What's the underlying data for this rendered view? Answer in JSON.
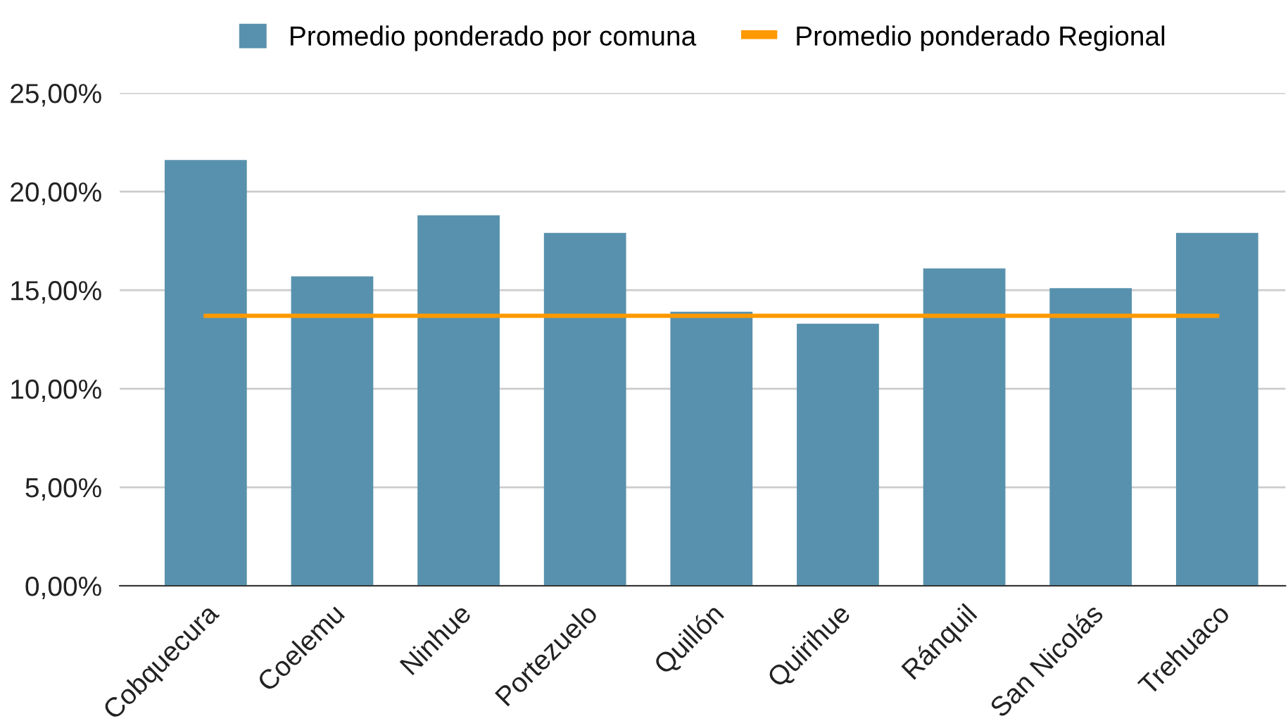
{
  "chart_data": {
    "type": "bar",
    "categories": [
      "Cobquecura",
      "Coelemu",
      "Ninhue",
      "Portezuelo",
      "Quillón",
      "Quirihue",
      "Ránquil",
      "San Nicolás",
      "Trehuaco"
    ],
    "series": [
      {
        "name": "Promedio ponderado por comuna",
        "color": "#5891ad",
        "values": [
          21.6,
          15.7,
          18.8,
          17.9,
          13.9,
          13.3,
          16.1,
          15.1,
          17.9
        ]
      },
      {
        "name": "Promedio ponderado Regional",
        "type": "line",
        "color": "#ff9900",
        "values": [
          13.7,
          13.7,
          13.7,
          13.7,
          13.7,
          13.7,
          13.7,
          13.7,
          13.7
        ]
      }
    ],
    "ylim": [
      0,
      25
    ],
    "yticks": [
      {
        "value": 0,
        "label": "0,00%"
      },
      {
        "value": 5,
        "label": "5,00%"
      },
      {
        "value": 10,
        "label": "10,00%"
      },
      {
        "value": 15,
        "label": "15,00%"
      },
      {
        "value": 20,
        "label": "20,00%"
      },
      {
        "value": 25,
        "label": "25,00%"
      }
    ],
    "grid": "y",
    "legend": "top"
  }
}
